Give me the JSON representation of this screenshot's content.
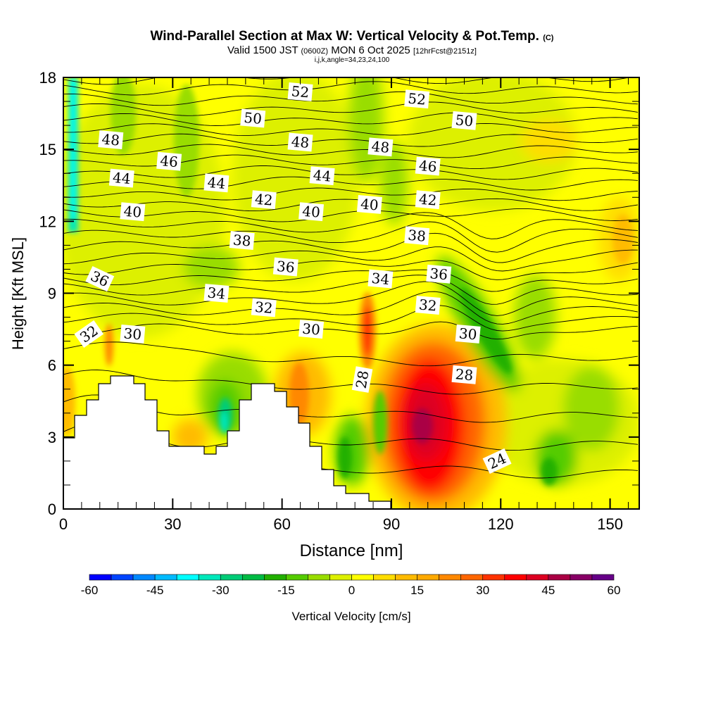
{
  "chart_data": {
    "type": "heatmap",
    "title": "Wind-Parallel Section at Max W: Vertical Velocity & Pot.Temp.",
    "title_mark": "(C)",
    "subtitle_valid": "Valid 1500 JST",
    "subtitle_utc": "(0600Z)",
    "subtitle_date": "MON 6 Oct 2025",
    "subtitle_fcst": "[12hrFcst@2151z]",
    "subtitle_params": "i,j,k,angle=34,23,24,100",
    "xlabel": "Distance [nm]",
    "ylabel": "Height [Kft MSL]",
    "xlim": [
      0,
      158
    ],
    "ylim": [
      0,
      18
    ],
    "xticks": [
      "0",
      "30",
      "60",
      "90",
      "120",
      "150"
    ],
    "yticks": [
      "0",
      "3",
      "6",
      "9",
      "12",
      "15",
      "18"
    ],
    "colorbar": {
      "label": "Vertical Velocity [cm/s]",
      "range": [
        -60,
        60
      ],
      "step": 5,
      "ticks": [
        "-60",
        "-45",
        "-30",
        "-15",
        "0",
        "15",
        "30",
        "45",
        "60"
      ],
      "colors": [
        "#0000ff",
        "#0044ff",
        "#0088ff",
        "#00bbff",
        "#00ffff",
        "#00e8bb",
        "#00cc77",
        "#00bb44",
        "#22b000",
        "#55cc00",
        "#99dd00",
        "#ddf000",
        "#ffff00",
        "#ffdd00",
        "#ffbb00",
        "#ffaa00",
        "#ff8800",
        "#ff6600",
        "#ff3300",
        "#ff0000",
        "#dd0022",
        "#aa0044",
        "#880066",
        "#660088"
      ]
    },
    "contour_labels": [
      {
        "text": "52",
        "x": 65,
        "z": 17.4
      },
      {
        "text": "52",
        "x": 97,
        "z": 17.1
      },
      {
        "text": "50",
        "x": 52,
        "z": 16.3
      },
      {
        "text": "50",
        "x": 110,
        "z": 16.2
      },
      {
        "text": "48",
        "x": 13,
        "z": 15.4
      },
      {
        "text": "48",
        "x": 65,
        "z": 15.3
      },
      {
        "text": "48",
        "x": 87,
        "z": 15.1
      },
      {
        "text": "46",
        "x": 29,
        "z": 14.5
      },
      {
        "text": "46",
        "x": 100,
        "z": 14.3
      },
      {
        "text": "44",
        "x": 16,
        "z": 13.8
      },
      {
        "text": "44",
        "x": 42,
        "z": 13.6
      },
      {
        "text": "44",
        "x": 71,
        "z": 13.9
      },
      {
        "text": "42",
        "x": 55,
        "z": 12.9
      },
      {
        "text": "42",
        "x": 100,
        "z": 12.9
      },
      {
        "text": "40",
        "x": 19,
        "z": 12.4
      },
      {
        "text": "40",
        "x": 68,
        "z": 12.4
      },
      {
        "text": "40",
        "x": 84,
        "z": 12.7
      },
      {
        "text": "38",
        "x": 49,
        "z": 11.2
      },
      {
        "text": "38",
        "x": 97,
        "z": 11.4
      },
      {
        "text": "36",
        "x": 10,
        "z": 9.6
      },
      {
        "text": "36",
        "x": 61,
        "z": 10.1
      },
      {
        "text": "36",
        "x": 103,
        "z": 9.8
      },
      {
        "text": "34",
        "x": 42,
        "z": 9.0
      },
      {
        "text": "34",
        "x": 87,
        "z": 9.6
      },
      {
        "text": "32",
        "x": 7,
        "z": 7.3
      },
      {
        "text": "32",
        "x": 55,
        "z": 8.4
      },
      {
        "text": "32",
        "x": 100,
        "z": 8.5
      },
      {
        "text": "30",
        "x": 19,
        "z": 7.3
      },
      {
        "text": "30",
        "x": 68,
        "z": 7.5
      },
      {
        "text": "30",
        "x": 111,
        "z": 7.3
      },
      {
        "text": "28",
        "x": 82,
        "z": 5.4
      },
      {
        "text": "28",
        "x": 110,
        "z": 5.6
      },
      {
        "text": "24",
        "x": 119,
        "z": 2.0
      }
    ]
  }
}
